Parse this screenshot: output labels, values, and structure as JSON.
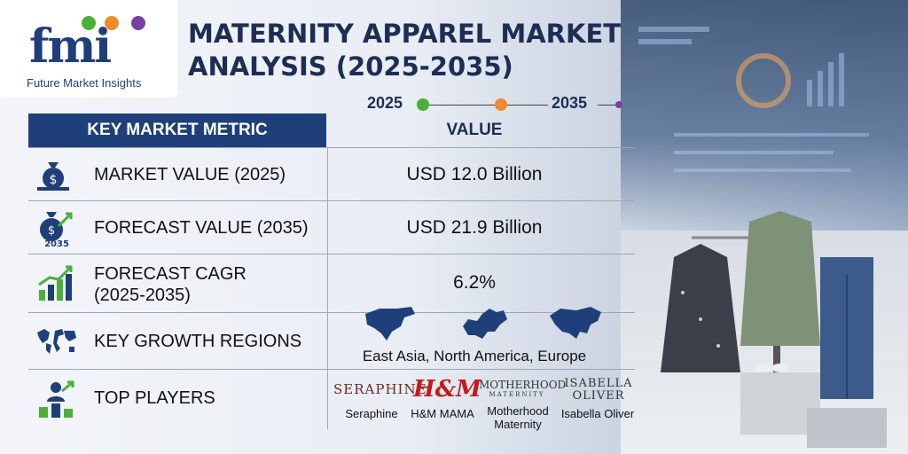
{
  "logo": {
    "letters": "fmi",
    "subtitle": "Future Market Insights"
  },
  "title": "MATERNITY APPAREL MARKET ANALYSIS (2025-2035)",
  "timeline": {
    "start": "2025",
    "end": "2035"
  },
  "table": {
    "header_metric": "KEY MARKET METRIC",
    "header_value": "VALUE",
    "rows": [
      {
        "metric": "MARKET VALUE (2025)",
        "value": "USD 12.0 Billion",
        "icon": "money-bag-icon"
      },
      {
        "metric": "FORECAST VALUE (2035)",
        "value": "USD 21.9 Billion",
        "icon": "money-bag-growth-icon",
        "icon_text": "2035"
      },
      {
        "metric_line1": "FORECAST CAGR",
        "metric_line2": "(2025-2035)",
        "value": "6.2%",
        "icon": "bar-growth-icon"
      },
      {
        "metric": "KEY GROWTH REGIONS",
        "value": "East Asia, North America,  Europe",
        "icon": "world-map-icon"
      },
      {
        "metric": "TOP PLAYERS",
        "icon": "podium-icon"
      }
    ]
  },
  "players": [
    {
      "logo": "SERAPHINE",
      "name": "Seraphine"
    },
    {
      "logo": "H&M",
      "name": "H&M MAMA"
    },
    {
      "logo_line1": "MOTHERHOOD",
      "logo_line2": "MATERNITY",
      "name_line1": "Motherhood",
      "name_line2": "Maternity"
    },
    {
      "logo_line1": "ISABELLA",
      "logo_line2": "OLIVER",
      "name": "Isabella Oliver"
    }
  ],
  "colors": {
    "navy": "#1f3f7a",
    "green": "#4caf3a",
    "orange": "#f08a2c",
    "purple": "#7b3fa0",
    "blue_dot": "#2f6fc4"
  }
}
